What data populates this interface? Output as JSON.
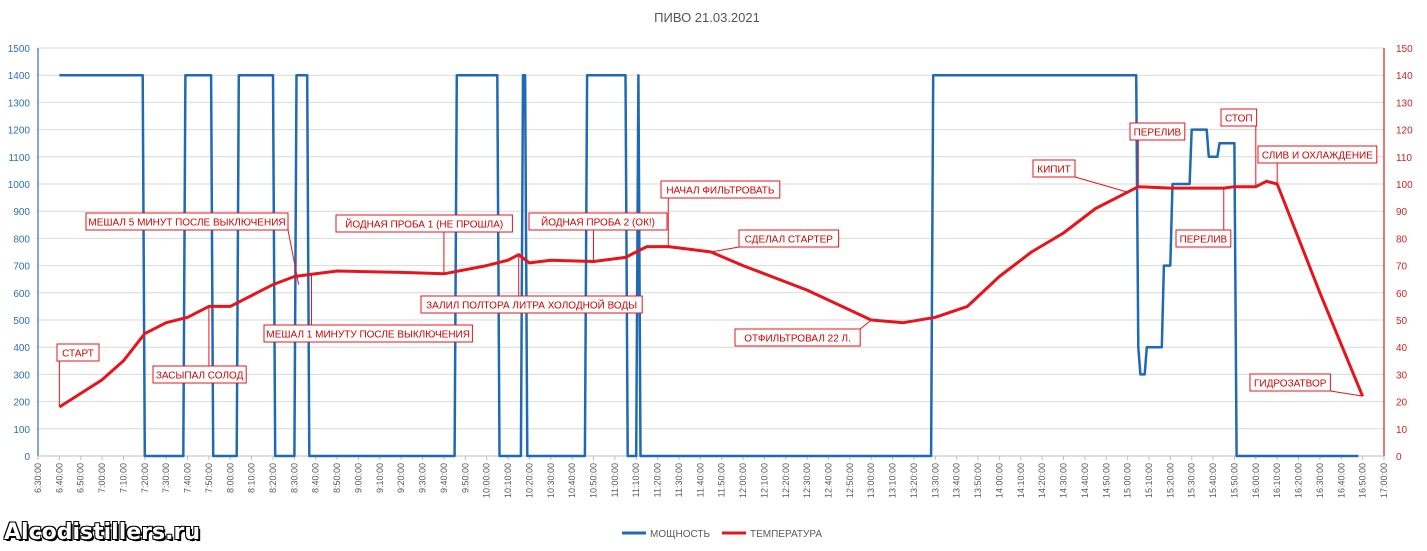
{
  "chart_data": {
    "type": "line",
    "title": "ПИВО 21.03.2021",
    "x_range": [
      "6:30:00",
      "17:00:00"
    ],
    "x_tick_step_min": 10,
    "y_left": {
      "min": 0,
      "max": 1500,
      "step": 100
    },
    "y_right": {
      "min": 0,
      "max": 150,
      "step": 10
    },
    "grid": true,
    "legend_position": "bottom",
    "series": [
      {
        "name": "МОЩНОСТЬ",
        "axis": "left",
        "color": "#1f6ab3",
        "points": [
          [
            "6:40:00",
            1400
          ],
          [
            "7:19:00",
            1400
          ],
          [
            "7:20:00",
            0
          ],
          [
            "7:38:00",
            0
          ],
          [
            "7:39:00",
            1400
          ],
          [
            "7:51:00",
            1400
          ],
          [
            "7:52:00",
            0
          ],
          [
            "8:03:00",
            0
          ],
          [
            "8:04:00",
            1400
          ],
          [
            "8:20:00",
            1400
          ],
          [
            "8:21:00",
            0
          ],
          [
            "8:30:00",
            0
          ],
          [
            "8:31:00",
            1400
          ],
          [
            "8:36:00",
            1400
          ],
          [
            "8:37:00",
            0
          ],
          [
            "9:45:00",
            0
          ],
          [
            "9:46:00",
            1400
          ],
          [
            "10:05:00",
            1400
          ],
          [
            "10:06:00",
            0
          ],
          [
            "10:16:00",
            0
          ],
          [
            "10:17:00",
            1400
          ],
          [
            "10:18:00",
            1400
          ],
          [
            "10:19:00",
            0
          ],
          [
            "10:46:00",
            0
          ],
          [
            "10:47:00",
            1400
          ],
          [
            "11:05:00",
            1400
          ],
          [
            "11:06:00",
            0
          ],
          [
            "11:10:00",
            0
          ],
          [
            "11:11:00",
            1400
          ],
          [
            "11:12:00",
            0
          ],
          [
            "13:28:00",
            0
          ],
          [
            "13:29:00",
            1400
          ],
          [
            "15:04:00",
            1400
          ],
          [
            "15:05:00",
            400
          ],
          [
            "15:06:00",
            300
          ],
          [
            "15:08:00",
            300
          ],
          [
            "15:09:00",
            400
          ],
          [
            "15:16:00",
            400
          ],
          [
            "15:17:00",
            700
          ],
          [
            "15:20:00",
            700
          ],
          [
            "15:21:00",
            1000
          ],
          [
            "15:29:00",
            1000
          ],
          [
            "15:30:00",
            1200
          ],
          [
            "15:37:00",
            1200
          ],
          [
            "15:38:00",
            1100
          ],
          [
            "15:42:00",
            1100
          ],
          [
            "15:43:00",
            1150
          ],
          [
            "15:50:00",
            1150
          ],
          [
            "15:51:00",
            0
          ],
          [
            "16:48:00",
            0
          ]
        ]
      },
      {
        "name": "ТЕМПЕРАТУРА",
        "axis": "right",
        "color": "#e8141b",
        "points": [
          [
            "6:40:00",
            18
          ],
          [
            "7:00:00",
            28
          ],
          [
            "7:10:00",
            35
          ],
          [
            "7:20:00",
            45
          ],
          [
            "7:30:00",
            49
          ],
          [
            "7:40:00",
            51
          ],
          [
            "7:50:00",
            55
          ],
          [
            "8:00:00",
            55
          ],
          [
            "8:10:00",
            59
          ],
          [
            "8:20:00",
            63
          ],
          [
            "8:30:00",
            66
          ],
          [
            "8:40:00",
            67
          ],
          [
            "8:50:00",
            68
          ],
          [
            "9:20:00",
            67.5
          ],
          [
            "9:40:00",
            67
          ],
          [
            "10:00:00",
            70
          ],
          [
            "10:10:00",
            72
          ],
          [
            "10:15:00",
            74
          ],
          [
            "10:20:00",
            71
          ],
          [
            "10:30:00",
            72
          ],
          [
            "10:50:00",
            71.5
          ],
          [
            "11:05:00",
            73
          ],
          [
            "11:15:00",
            77
          ],
          [
            "11:25:00",
            77
          ],
          [
            "11:35:00",
            76
          ],
          [
            "11:45:00",
            75
          ],
          [
            "12:00:00",
            70
          ],
          [
            "12:30:00",
            61
          ],
          [
            "13:00:00",
            50
          ],
          [
            "13:15:00",
            49
          ],
          [
            "13:30:00",
            51
          ],
          [
            "13:45:00",
            55
          ],
          [
            "14:00:00",
            66
          ],
          [
            "14:15:00",
            75
          ],
          [
            "14:30:00",
            82
          ],
          [
            "14:45:00",
            91
          ],
          [
            "15:00:00",
            97
          ],
          [
            "15:05:00",
            99
          ],
          [
            "15:20:00",
            98.5
          ],
          [
            "15:35:00",
            98.5
          ],
          [
            "15:45:00",
            98.5
          ],
          [
            "15:50:00",
            99
          ],
          [
            "16:00:00",
            99
          ],
          [
            "16:05:00",
            101
          ],
          [
            "16:10:00",
            100
          ],
          [
            "16:30:00",
            60
          ],
          [
            "16:50:00",
            22
          ]
        ]
      }
    ],
    "annotations": [
      {
        "text": "СТАРТ",
        "at": [
          "6:40:00",
          18
        ]
      },
      {
        "text": "ЗАСЫПАЛ СОЛОД",
        "at": [
          "7:50:00",
          55
        ]
      },
      {
        "text": "МЕШАЛ 5 МИНУТ ПОСЛЕ ВЫКЛЮЧЕНИЯ",
        "at": [
          "8:32:00",
          63
        ]
      },
      {
        "text": "МЕШАЛ 1 МИНУТУ ПОСЛЕ ВЫКЛЮЧЕНИЯ",
        "at": [
          "8:38:00",
          67
        ]
      },
      {
        "text": "ЙОДНАЯ ПРОБА 1 (НЕ ПРОШЛА)",
        "at": [
          "9:40:00",
          67
        ]
      },
      {
        "text": "ЙОДНАЯ ПРОБА 2 (ОК!)",
        "at": [
          "10:50:00",
          71.5
        ]
      },
      {
        "text": "ЗАЛИЛ ПОЛТОРА ЛИТРА ХОЛОДНОЙ ВОДЫ",
        "at": [
          "10:15:00",
          74
        ]
      },
      {
        "text": "НАЧАЛ ФИЛЬТРОВАТЬ",
        "at": [
          "11:25:00",
          77
        ]
      },
      {
        "text": "СДЕЛАЛ СТАРТЕР",
        "at": [
          "11:45:00",
          75
        ]
      },
      {
        "text": "ОТФИЛЬТРОВАЛ 22 Л.",
        "at": [
          "13:00:00",
          50
        ]
      },
      {
        "text": "КИПИТ",
        "at": [
          "15:00:00",
          97
        ]
      },
      {
        "text": "ПЕРЕЛИВ",
        "at": [
          "15:05:00",
          99
        ]
      },
      {
        "text": "ПЕРЕЛИВ",
        "at": [
          "15:45:00",
          98.5
        ]
      },
      {
        "text": "СТОП",
        "at": [
          "16:00:00",
          99
        ]
      },
      {
        "text": "СЛИВ И ОХЛАЖДЕНИЕ",
        "at": [
          "16:10:00",
          100
        ]
      },
      {
        "text": "ГИДРОЗАТВОР",
        "at": [
          "16:50:00",
          22
        ]
      }
    ]
  },
  "watermark": "Alcodistillers.ru"
}
